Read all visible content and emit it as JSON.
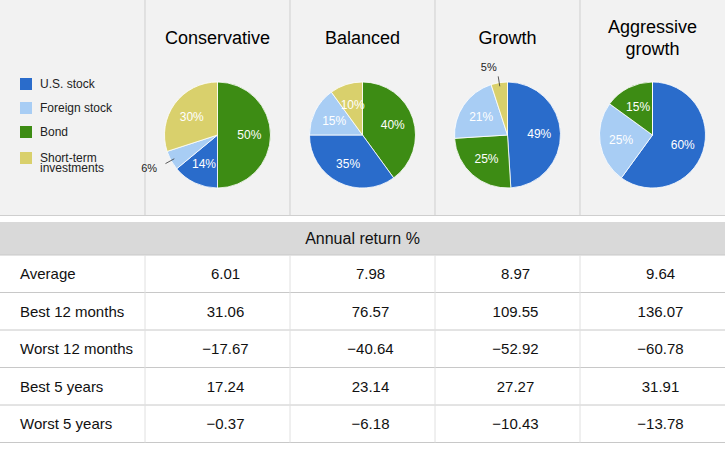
{
  "chart_data": {
    "type": "pie",
    "categories": [
      "U.S. stock",
      "Foreign stock",
      "Bond",
      "Short-term investments"
    ],
    "colors": [
      "#2a6ccb",
      "#a8cdf4",
      "#3d8c14",
      "#d9d06c"
    ],
    "data_labels": true,
    "series": [
      {
        "name": "Conservative",
        "values": [
          14,
          6,
          50,
          30
        ],
        "value_labels": [
          "14%",
          "6%",
          "50%",
          "30%"
        ]
      },
      {
        "name": "Balanced",
        "values": [
          35,
          15,
          40,
          10
        ],
        "value_labels": [
          "35%",
          "15%",
          "40%",
          "10%"
        ]
      },
      {
        "name": "Growth",
        "values": [
          49,
          21,
          25,
          5
        ],
        "value_labels": [
          "49%",
          "21%",
          "25%",
          "5%"
        ]
      },
      {
        "name": "Aggressive growth",
        "values": [
          60,
          25,
          15,
          0
        ],
        "value_labels": [
          "60%",
          "25%",
          "15%",
          null
        ]
      }
    ]
  },
  "table": {
    "title": "Annual return %",
    "rows": [
      [
        "Average",
        6.01,
        7.98,
        8.97,
        9.64
      ],
      [
        "Best 12 months",
        31.06,
        76.57,
        109.55,
        136.07
      ],
      [
        "Worst 12 months",
        -17.67,
        -40.64,
        -52.92,
        -60.78
      ],
      [
        "Best 5 years",
        17.24,
        23.14,
        27.27,
        31.91
      ],
      [
        "Worst 5 years",
        -0.37,
        -6.18,
        -10.43,
        -13.78
      ]
    ]
  }
}
